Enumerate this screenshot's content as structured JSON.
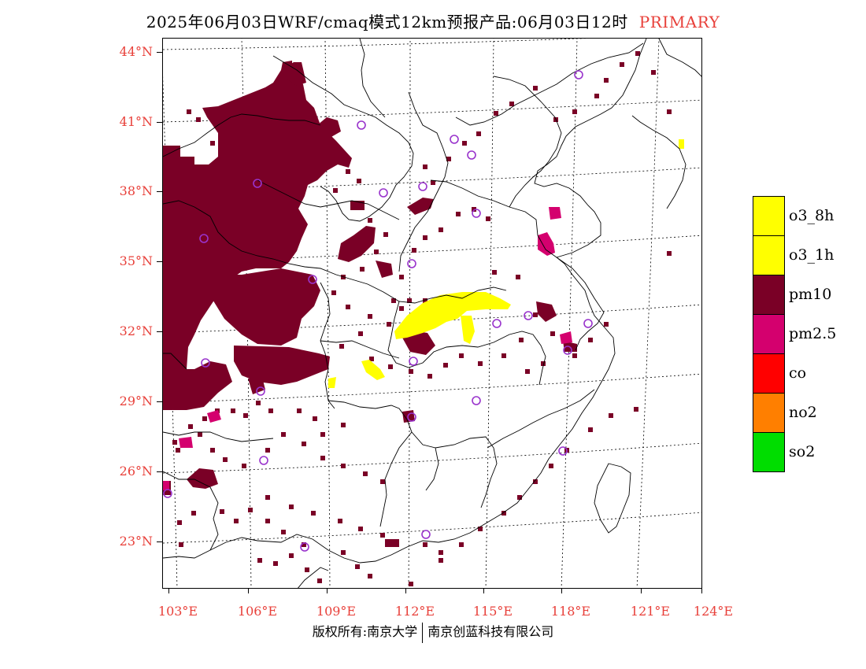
{
  "title": {
    "main": "2025年06月03日WRF/cmaq模式12km预报产品:06月03日12时",
    "badge": "PRIMARY",
    "badge_color": "#e8403a"
  },
  "axis_color": "#e8403a",
  "lat_labels": [
    "44°N",
    "41°N",
    "38°N",
    "35°N",
    "32°N",
    "29°N",
    "26°N",
    "23°N"
  ],
  "lon_labels": [
    "103°E",
    "106°E",
    "109°E",
    "112°E",
    "115°E",
    "118°E",
    "121°E",
    "124°E"
  ],
  "legend": [
    {
      "label": "o3_8h",
      "color": "#ffff00"
    },
    {
      "label": "o3_1h",
      "color": "#ffff00"
    },
    {
      "label": "pm10",
      "color": "#7a0026"
    },
    {
      "label": "pm2.5",
      "color": "#d4006e"
    },
    {
      "label": "co",
      "color": "#ff0000"
    },
    {
      "label": "no2",
      "color": "#ff7f00"
    },
    {
      "label": "so2",
      "color": "#00dd00"
    }
  ],
  "footer": {
    "left": "版权所有:南京大学",
    "right": "南京创蓝科技有限公司"
  },
  "colors": {
    "pm10": "#7a0026",
    "pm25": "#d4006e",
    "o3": "#ffff00",
    "station": "#9933cc"
  }
}
